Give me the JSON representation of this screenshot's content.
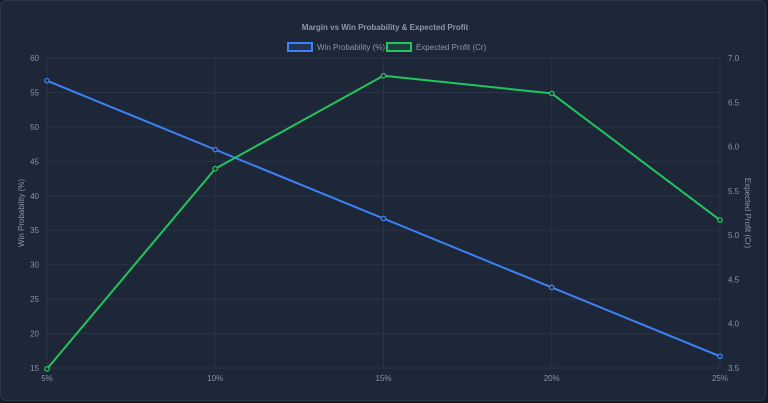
{
  "chart_data": {
    "type": "line",
    "title": "Margin vs Win Probability & Expected Profit",
    "categories": [
      "5%",
      "10%",
      "15%",
      "20%",
      "25%"
    ],
    "series": [
      {
        "name": "Win Probability (%)",
        "axis": "left",
        "color": "#3b82f6",
        "values": [
          56.7,
          46.7,
          36.7,
          26.7,
          16.7
        ]
      },
      {
        "name": "Expected Profit (Cr)",
        "axis": "right",
        "color": "#22c55e",
        "values": [
          3.49,
          5.75,
          6.8,
          6.6,
          5.17
        ]
      }
    ],
    "y_left": {
      "label": "Win Probability (%)",
      "ylim": [
        15,
        60
      ],
      "ticks": [
        "15",
        "20",
        "25",
        "30",
        "35",
        "40",
        "45",
        "50",
        "55",
        "60"
      ]
    },
    "y_right": {
      "label": "Expected Profit (Cr)",
      "ylim": [
        3.5,
        7.0
      ],
      "ticks": [
        "3.5",
        "4.0",
        "4.5",
        "5.0",
        "5.5",
        "6.0",
        "6.5",
        "7.0"
      ]
    },
    "grid": true,
    "legend_position": "top-center"
  }
}
